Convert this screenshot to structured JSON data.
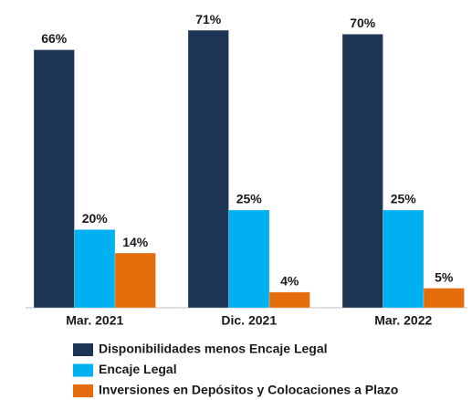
{
  "chart_data": {
    "type": "bar",
    "categories": [
      "Mar. 2021",
      "Dic. 2021",
      "Mar. 2022"
    ],
    "series": [
      {
        "name": "Disponibilidades menos Encaje Legal",
        "color": "#1f3556",
        "values": [
          66,
          71,
          70
        ],
        "value_labels": [
          "66%",
          "71%",
          "70%"
        ]
      },
      {
        "name": "Encaje Legal",
        "color": "#00b0f0",
        "values": [
          20,
          25,
          25
        ],
        "value_labels": [
          "20%",
          "25%",
          "25%"
        ]
      },
      {
        "name": "Inversiones en Depósitos y Colocaciones a Plazo",
        "color": "#e46c0a",
        "values": [
          14,
          4,
          5
        ],
        "value_labels": [
          "14%",
          "4%",
          "5%"
        ]
      }
    ]
  }
}
